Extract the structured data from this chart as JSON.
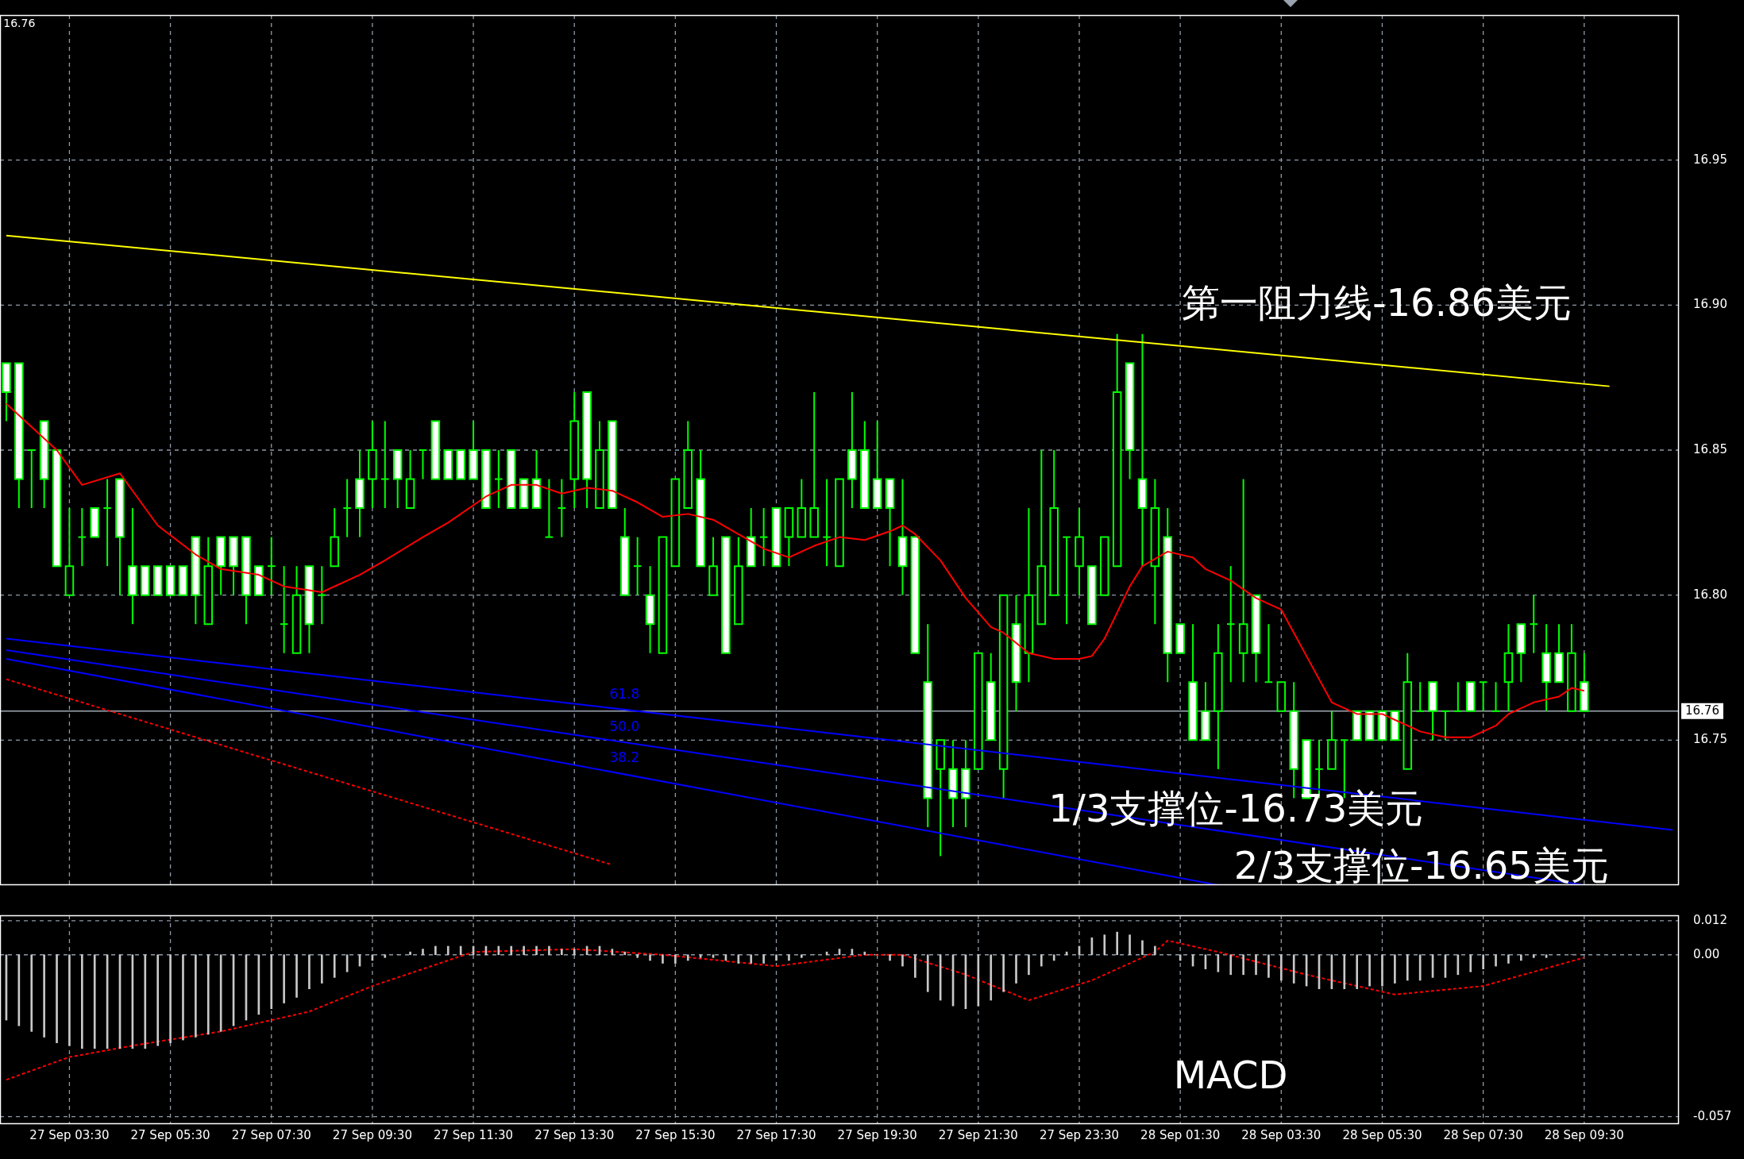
{
  "chart_data": [
    {
      "type": "candlestick",
      "color": "#00ff00",
      "categories": [
        null,
        null,
        null,
        null,
        null,
        null,
        null,
        null,
        null,
        null,
        null,
        null,
        null,
        null,
        null,
        null,
        null,
        null,
        null,
        null,
        null,
        null,
        null,
        null,
        null,
        null,
        null,
        null,
        null,
        null,
        null,
        null,
        null,
        null,
        null,
        null,
        null,
        null,
        null,
        null,
        null,
        null,
        null,
        null,
        null,
        null,
        null,
        null,
        null,
        null,
        null,
        null,
        null,
        null,
        null,
        null,
        null,
        null,
        null,
        null,
        null,
        null,
        null,
        null,
        null,
        null,
        null,
        null,
        null,
        null,
        null,
        null,
        null,
        null,
        null,
        null,
        null,
        null,
        null,
        null,
        null,
        null,
        null,
        null,
        null,
        null,
        null,
        null,
        null,
        null,
        null,
        null,
        null,
        null,
        null,
        null,
        null,
        null,
        null,
        null,
        null,
        null,
        null,
        null,
        null,
        null,
        null,
        null,
        null,
        null,
        null,
        null,
        null,
        null,
        null,
        null,
        null,
        null,
        null,
        null,
        null,
        null,
        null,
        null,
        null,
        null,
        null,
        null,
        null,
        null,
        null,
        null,
        null
      ],
      "ohlc": [
        [
          16.88,
          16.88,
          16.86,
          16.87
        ],
        [
          16.88,
          16.88,
          16.83,
          16.84
        ],
        [
          16.85,
          16.85,
          16.83,
          16.85
        ],
        [
          16.86,
          16.86,
          16.83,
          16.84
        ],
        [
          16.85,
          16.85,
          16.81,
          16.81
        ],
        [
          16.8,
          16.83,
          16.8,
          16.81
        ],
        [
          16.82,
          16.83,
          16.81,
          16.82
        ],
        [
          16.83,
          16.83,
          16.82,
          16.82
        ],
        [
          16.83,
          16.84,
          16.81,
          16.83
        ],
        [
          16.84,
          16.84,
          16.8,
          16.82
        ],
        [
          16.81,
          16.83,
          16.79,
          16.8
        ],
        [
          16.81,
          16.81,
          16.8,
          16.8
        ],
        [
          16.81,
          16.81,
          16.8,
          16.8
        ],
        [
          16.81,
          16.81,
          16.8,
          16.8
        ],
        [
          16.81,
          16.81,
          16.8,
          16.8
        ],
        [
          16.82,
          16.82,
          16.79,
          16.8
        ],
        [
          16.79,
          16.82,
          16.79,
          16.81
        ],
        [
          16.82,
          16.82,
          16.8,
          16.81
        ],
        [
          16.82,
          16.82,
          16.8,
          16.81
        ],
        [
          16.82,
          16.82,
          16.79,
          16.8
        ],
        [
          16.81,
          16.81,
          16.8,
          16.8
        ],
        [
          16.81,
          16.82,
          16.8,
          16.81
        ],
        [
          16.79,
          16.81,
          16.78,
          16.79
        ],
        [
          16.78,
          16.81,
          16.78,
          16.8
        ],
        [
          16.81,
          16.81,
          16.78,
          16.79
        ],
        [
          16.8,
          16.81,
          16.79,
          16.8
        ],
        [
          16.81,
          16.83,
          16.81,
          16.82
        ],
        [
          16.83,
          16.84,
          16.82,
          16.83
        ],
        [
          16.84,
          16.85,
          16.82,
          16.83
        ],
        [
          16.84,
          16.86,
          16.83,
          16.85
        ],
        [
          16.84,
          16.86,
          16.83,
          16.84
        ],
        [
          16.85,
          16.85,
          16.83,
          16.84
        ],
        [
          16.83,
          16.85,
          16.83,
          16.84
        ],
        [
          16.85,
          16.85,
          16.84,
          16.85
        ],
        [
          16.86,
          16.86,
          16.84,
          16.84
        ],
        [
          16.85,
          16.85,
          16.84,
          16.84
        ],
        [
          16.85,
          16.85,
          16.84,
          16.84
        ],
        [
          16.85,
          16.86,
          16.84,
          16.84
        ],
        [
          16.85,
          16.85,
          16.83,
          16.83
        ],
        [
          16.84,
          16.85,
          16.83,
          16.84
        ],
        [
          16.85,
          16.85,
          16.83,
          16.83
        ],
        [
          16.84,
          16.84,
          16.83,
          16.83
        ],
        [
          16.84,
          16.85,
          16.83,
          16.83
        ],
        [
          16.82,
          16.84,
          16.82,
          16.82
        ],
        [
          16.83,
          16.84,
          16.82,
          16.83
        ],
        [
          16.84,
          16.87,
          16.83,
          16.86
        ],
        [
          16.87,
          16.87,
          16.83,
          16.84
        ],
        [
          16.83,
          16.86,
          16.83,
          16.85
        ],
        [
          16.86,
          16.86,
          16.83,
          16.83
        ],
        [
          16.82,
          16.83,
          16.8,
          16.8
        ],
        [
          16.81,
          16.82,
          16.8,
          16.81
        ],
        [
          16.8,
          16.81,
          16.78,
          16.79
        ],
        [
          16.78,
          16.82,
          16.78,
          16.82
        ],
        [
          16.81,
          16.84,
          16.81,
          16.84
        ],
        [
          16.83,
          16.86,
          16.83,
          16.85
        ],
        [
          16.84,
          16.85,
          16.81,
          16.81
        ],
        [
          16.8,
          16.82,
          16.8,
          16.81
        ],
        [
          16.82,
          16.82,
          16.78,
          16.78
        ],
        [
          16.79,
          16.82,
          16.79,
          16.81
        ],
        [
          16.82,
          16.83,
          16.81,
          16.81
        ],
        [
          16.82,
          16.83,
          16.81,
          16.82
        ],
        [
          16.83,
          16.83,
          16.81,
          16.81
        ],
        [
          16.82,
          16.83,
          16.81,
          16.83
        ],
        [
          16.82,
          16.84,
          16.82,
          16.83
        ],
        [
          16.82,
          16.87,
          16.82,
          16.83
        ],
        [
          16.82,
          16.84,
          16.81,
          16.82
        ],
        [
          16.81,
          16.84,
          16.81,
          16.84
        ],
        [
          16.85,
          16.87,
          16.83,
          16.84
        ],
        [
          16.85,
          16.86,
          16.83,
          16.83
        ],
        [
          16.84,
          16.86,
          16.83,
          16.83
        ],
        [
          16.84,
          16.84,
          16.81,
          16.83
        ],
        [
          16.82,
          16.84,
          16.8,
          16.81
        ],
        [
          16.82,
          16.82,
          16.78,
          16.78
        ],
        [
          16.77,
          16.79,
          16.72,
          16.73
        ],
        [
          16.74,
          16.75,
          16.71,
          16.75
        ],
        [
          16.74,
          16.75,
          16.72,
          16.73
        ],
        [
          16.74,
          16.75,
          16.72,
          16.73
        ],
        [
          16.74,
          16.78,
          16.74,
          16.78
        ],
        [
          16.77,
          16.78,
          16.75,
          16.75
        ],
        [
          16.74,
          16.8,
          16.73,
          16.8
        ],
        [
          16.79,
          16.8,
          16.76,
          16.77
        ],
        [
          16.78,
          16.83,
          16.77,
          16.8
        ],
        [
          16.79,
          16.85,
          16.79,
          16.81
        ],
        [
          16.8,
          16.85,
          16.8,
          16.83
        ],
        [
          16.82,
          16.82,
          16.79,
          16.82
        ],
        [
          16.81,
          16.83,
          16.8,
          16.82
        ],
        [
          16.81,
          16.81,
          16.79,
          16.79
        ],
        [
          16.8,
          16.82,
          16.8,
          16.82
        ],
        [
          16.81,
          16.89,
          16.81,
          16.87
        ],
        [
          16.88,
          16.88,
          16.84,
          16.85
        ],
        [
          16.84,
          16.89,
          16.81,
          16.83
        ],
        [
          16.81,
          16.84,
          16.79,
          16.83
        ],
        [
          16.82,
          16.83,
          16.77,
          16.78
        ],
        [
          16.79,
          16.79,
          16.78,
          16.78
        ],
        [
          16.77,
          16.79,
          16.75,
          16.75
        ],
        [
          16.76,
          16.77,
          16.75,
          16.75
        ],
        [
          16.76,
          16.79,
          16.74,
          16.78
        ],
        [
          16.79,
          16.81,
          16.77,
          16.79
        ],
        [
          16.78,
          16.84,
          16.77,
          16.79
        ],
        [
          16.8,
          16.8,
          16.77,
          16.78
        ],
        [
          16.77,
          16.79,
          16.77,
          16.77
        ],
        [
          16.76,
          16.77,
          16.76,
          16.77
        ],
        [
          16.76,
          16.77,
          16.73,
          16.74
        ],
        [
          16.75,
          16.75,
          16.73,
          16.73
        ],
        [
          16.74,
          16.75,
          16.73,
          16.74
        ],
        [
          16.74,
          16.76,
          16.74,
          16.75
        ],
        [
          16.75,
          16.75,
          16.73,
          16.75
        ],
        [
          16.76,
          16.76,
          16.75,
          16.75
        ],
        [
          16.76,
          16.76,
          16.75,
          16.75
        ],
        [
          16.76,
          16.76,
          16.75,
          16.75
        ],
        [
          16.76,
          16.76,
          16.75,
          16.75
        ],
        [
          16.74,
          16.78,
          16.74,
          16.77
        ],
        [
          16.76,
          16.77,
          16.76,
          16.76
        ],
        [
          16.77,
          16.77,
          16.75,
          16.76
        ],
        [
          16.76,
          16.76,
          16.75,
          16.76
        ],
        [
          16.76,
          16.77,
          16.76,
          16.76
        ],
        [
          16.77,
          16.77,
          16.76,
          16.76
        ],
        [
          16.77,
          16.77,
          16.76,
          16.77
        ],
        [
          16.76,
          16.77,
          16.76,
          16.76
        ],
        [
          16.77,
          16.79,
          16.76,
          16.78
        ],
        [
          16.79,
          16.79,
          16.77,
          16.78
        ],
        [
          16.79,
          16.8,
          16.78,
          16.79
        ],
        [
          16.78,
          16.79,
          16.76,
          16.77
        ],
        [
          16.78,
          16.79,
          16.77,
          16.77
        ],
        [
          16.76,
          16.79,
          16.76,
          16.78
        ],
        [
          16.77,
          16.78,
          16.76,
          16.76
        ],
        null,
        null,
        null,
        null,
        null,
        null,
        null
      ],
      "colors": [
        "#ffffff",
        "#ffffff",
        "#00ff00",
        "#ffffff",
        "#ffffff",
        "#000000",
        "#00ff00",
        "#ffffff",
        "#00ff00",
        "#ffffff",
        "#ffffff",
        "#ffffff",
        "#ffffff",
        "#ffffff",
        "#ffffff",
        "#ffffff",
        "#000000",
        "#ffffff",
        "#ffffff",
        "#ffffff",
        "#ffffff",
        "#00ff00",
        "#00ff00",
        "#000000",
        "#ffffff",
        "#00ff00",
        "#000000",
        "#00ff00",
        "#ffffff",
        "#000000",
        "#00ff00",
        "#ffffff",
        "#000000",
        "#00ff00",
        "#ffffff",
        "#ffffff",
        "#ffffff",
        "#ffffff",
        "#ffffff",
        "#00ff00",
        "#ffffff",
        "#ffffff",
        "#ffffff",
        "#00ff00",
        "#00ff00",
        "#000000",
        "#ffffff",
        "#000000",
        "#ffffff",
        "#ffffff",
        "#00ff00",
        "#ffffff",
        "#000000",
        "#000000",
        "#000000",
        "#ffffff",
        "#000000",
        "#ffffff",
        "#000000",
        "#ffffff",
        "#00ff00",
        "#ffffff",
        "#000000",
        "#000000",
        "#000000",
        "#00ff00",
        "#000000",
        "#ffffff",
        "#ffffff",
        "#ffffff",
        "#ffffff",
        "#ffffff",
        "#ffffff",
        "#ffffff",
        "#000000",
        "#ffffff",
        "#ffffff",
        "#000000",
        "#ffffff",
        "#000000",
        "#ffffff",
        "#000000",
        "#000000",
        "#000000",
        "#00ff00",
        "#000000",
        "#ffffff",
        "#000000",
        "#000000",
        "#ffffff",
        "#ffffff",
        "#000000",
        "#ffffff",
        "#ffffff",
        "#ffffff",
        "#ffffff",
        "#000000",
        "#00ff00",
        "#000000",
        "#ffffff",
        "#00ff00",
        "#000000",
        "#ffffff",
        "#ffffff",
        "#00ff00",
        "#000000",
        "#00ff00",
        "#ffffff",
        "#ffffff",
        "#ffffff",
        "#ffffff",
        "#000000",
        "#00ff00",
        "#ffffff",
        "#00ff00",
        "#00ff00",
        "#ffffff",
        "#00ff00",
        "#00ff00",
        "#000000",
        "#ffffff",
        "#00ff00",
        "#ffffff",
        "#ffffff",
        "#000000",
        "#ffffff",
        null,
        null,
        null,
        null,
        null,
        null,
        null
      ],
      "series": [
        {
          "type": "line",
          "color": "#ff0000",
          "values": [
            16.866,
            null,
            null,
            null,
            16.85,
            null,
            16.838,
            null,
            null,
            16.842,
            null,
            null,
            16.824,
            null,
            null,
            16.814,
            null,
            16.809,
            null,
            null,
            16.807,
            null,
            16.803,
            null,
            null,
            16.801,
            null,
            null,
            16.807,
            null,
            16.812,
            null,
            null,
            16.82,
            null,
            16.825,
            null,
            null,
            16.834,
            null,
            16.838,
            null,
            16.838,
            null,
            16.835,
            null,
            16.837,
            null,
            16.836,
            null,
            16.832,
            null,
            16.827,
            null,
            16.828,
            null,
            16.826,
            null,
            16.821,
            null,
            16.816,
            null,
            16.813,
            null,
            16.817,
            null,
            16.82,
            null,
            16.819,
            null,
            16.822,
            16.824,
            16.821,
            null,
            16.812,
            null,
            16.799,
            null,
            16.789,
            16.787,
            null,
            16.78,
            null,
            16.778,
            null,
            16.778,
            16.779,
            16.785,
            16.794,
            16.803,
            16.81,
            null,
            16.815,
            null,
            16.813,
            16.809,
            null,
            16.805,
            null,
            16.799,
            null,
            16.795,
            16.787,
            null,
            16.771,
            16.763,
            null,
            16.759,
            null,
            16.759,
            16.757,
            null,
            16.753,
            null,
            16.751,
            null,
            16.751,
            null,
            16.755,
            16.759,
            null,
            16.763,
            null,
            16.765,
            16.768,
            16.767,
            null,
            null,
            null,
            null,
            null,
            null,
            null
          ]
        },
        {
          "type": "line",
          "color": "#ffff00",
          "values": [
            16.924,
            null,
            null,
            null,
            null,
            null,
            null,
            null,
            null,
            null,
            null,
            null,
            null,
            null,
            null,
            null,
            null,
            null,
            null,
            null,
            null,
            null,
            null,
            null,
            null,
            null,
            null,
            null,
            null,
            null,
            null,
            null,
            null,
            null,
            null,
            null,
            null,
            null,
            null,
            null,
            null,
            null,
            null,
            null,
            null,
            null,
            null,
            null,
            null,
            null,
            null,
            null,
            null,
            null,
            null,
            null,
            null,
            null,
            null,
            null,
            null,
            null,
            null,
            null,
            null,
            null,
            null,
            null,
            null,
            null,
            null,
            null,
            null,
            null,
            null,
            null,
            null,
            null,
            null,
            null,
            null,
            null,
            null,
            null,
            null,
            null,
            null,
            null,
            null,
            null,
            null,
            null,
            null,
            null,
            null,
            null,
            null,
            null,
            null,
            null,
            null,
            null,
            null,
            null,
            null,
            null,
            null,
            null,
            null,
            null,
            null,
            null,
            null,
            null,
            null,
            null,
            null,
            null,
            null,
            null,
            null,
            null,
            null,
            null,
            null,
            null,
            null,
            16.872,
            null,
            null,
            null,
            null,
            null
          ]
        },
        {
          "type": "line",
          "name": "61.8",
          "color": "#0000ff",
          "values": [
            16.785,
            null,
            null,
            null,
            null,
            null,
            null,
            null,
            null,
            null,
            null,
            null,
            null,
            null,
            null,
            null,
            null,
            null,
            null,
            null,
            null,
            null,
            null,
            null,
            null,
            null,
            null,
            null,
            null,
            null,
            null,
            null,
            null,
            null,
            null,
            null,
            null,
            null,
            null,
            null,
            null,
            null,
            null,
            null,
            null,
            null,
            null,
            null,
            null,
            null,
            null,
            null,
            null,
            null,
            null,
            null,
            null,
            null,
            null,
            null,
            null,
            null,
            null,
            null,
            null,
            null,
            null,
            null,
            null,
            null,
            null,
            null,
            null,
            null,
            null,
            null,
            null,
            null,
            null,
            null,
            null,
            null,
            null,
            null,
            null,
            null,
            null,
            null,
            null,
            null,
            null,
            null,
            null,
            null,
            null,
            null,
            null,
            null,
            null,
            null,
            null,
            null,
            null,
            null,
            null,
            null,
            null,
            null,
            null,
            null,
            null,
            null,
            null,
            null,
            null,
            null,
            null,
            null,
            null,
            null,
            null,
            null,
            null,
            null,
            null,
            null,
            null,
            null,
            null,
            null,
            null,
            null,
            16.719
          ]
        },
        {
          "type": "line",
          "name": "50.0",
          "color": "#0000ff",
          "values": [
            16.781,
            null,
            null,
            null,
            null,
            null,
            null,
            null,
            null,
            null,
            null,
            null,
            null,
            null,
            null,
            null,
            null,
            null,
            null,
            null,
            null,
            null,
            null,
            null,
            null,
            null,
            null,
            null,
            null,
            null,
            null,
            null,
            null,
            null,
            null,
            null,
            null,
            null,
            null,
            null,
            null,
            null,
            null,
            null,
            null,
            null,
            null,
            null,
            null,
            null,
            null,
            null,
            null,
            null,
            null,
            null,
            null,
            null,
            null,
            null,
            null,
            null,
            null,
            null,
            null,
            null,
            null,
            null,
            null,
            null,
            null,
            null,
            null,
            null,
            null,
            null,
            null,
            null,
            null,
            null,
            null,
            null,
            null,
            null,
            null,
            null,
            null,
            null,
            null,
            null,
            null,
            null,
            null,
            null,
            null,
            null,
            null,
            null,
            null,
            null,
            null,
            null,
            null,
            null,
            null,
            null,
            null,
            null,
            null,
            null,
            null,
            null,
            null,
            null,
            null,
            null,
            null,
            null,
            null,
            null,
            null,
            null,
            null,
            null,
            null,
            16.7,
            null,
            null,
            null,
            null,
            null,
            null,
            null
          ]
        },
        {
          "type": "line",
          "name": "38.2",
          "color": "#0000ff",
          "values": [
            16.778,
            null,
            null,
            null,
            null,
            null,
            null,
            null,
            null,
            null,
            null,
            null,
            null,
            null,
            null,
            null,
            null,
            null,
            null,
            null,
            null,
            null,
            null,
            null,
            null,
            null,
            null,
            null,
            null,
            null,
            null,
            null,
            null,
            null,
            null,
            null,
            null,
            null,
            null,
            null,
            null,
            null,
            null,
            null,
            null,
            null,
            null,
            null,
            null,
            null,
            null,
            null,
            null,
            null,
            null,
            null,
            null,
            null,
            null,
            null,
            null,
            null,
            null,
            null,
            null,
            null,
            null,
            null,
            null,
            null,
            null,
            null,
            null,
            null,
            null,
            null,
            null,
            null,
            null,
            null,
            null,
            null,
            null,
            null,
            null,
            null,
            null,
            null,
            null,
            null,
            null,
            null,
            null,
            null,
            null,
            null,
            16.7,
            null,
            null,
            null,
            null,
            null,
            null,
            null,
            null,
            null,
            null,
            null,
            null,
            null,
            null,
            null,
            null,
            null,
            null,
            null,
            null,
            null,
            null,
            null,
            null,
            null,
            null,
            null,
            null,
            null,
            null,
            null,
            null,
            null,
            null,
            null,
            null
          ]
        },
        {
          "type": "line",
          "color": "#ff0000",
          "line_style": "dashed",
          "values": [
            16.771,
            null,
            null,
            null,
            null,
            null,
            null,
            null,
            null,
            null,
            null,
            null,
            null,
            null,
            null,
            null,
            null,
            null,
            null,
            null,
            null,
            null,
            null,
            null,
            null,
            null,
            null,
            null,
            null,
            null,
            null,
            null,
            null,
            null,
            null,
            null,
            null,
            null,
            null,
            null,
            null,
            null,
            null,
            null,
            null,
            null,
            null,
            null,
            16.707,
            null,
            null,
            null,
            null,
            null,
            null,
            null,
            null,
            null,
            null,
            null,
            null,
            null,
            null,
            null,
            null,
            null,
            null,
            null,
            null,
            null,
            null,
            null,
            null,
            null,
            null,
            null,
            null,
            null,
            null,
            null,
            null,
            null,
            null,
            null,
            null,
            null,
            null,
            null,
            null,
            null,
            null,
            null,
            null,
            null,
            null,
            null,
            null,
            null,
            null,
            null,
            null,
            null,
            null,
            null,
            null,
            null,
            null,
            null,
            null,
            null,
            null,
            null,
            null,
            null,
            null,
            null,
            null,
            null,
            null,
            null,
            null,
            null,
            null,
            null,
            null,
            null,
            null,
            null,
            null,
            null,
            null,
            null,
            null
          ]
        }
      ],
      "ylim": [
        16.7,
        17.0
      ],
      "yticks": [
        16.75,
        {
          "value": 16.8,
          "label": "16.80"
        },
        16.85,
        {
          "value": 16.9,
          "label": "16.90"
        },
        16.95
      ],
      "tick_labels": "y",
      "grid": true,
      "ref_lines": [
        {
          "axis": "y",
          "value": 16.76,
          "label": "16.76",
          "color": "#a0a8b4"
        }
      ],
      "annotations": [
        "16.76",
        "第一阻力线-16.86美元",
        "1/3支撑位-16.73美元",
        "2/3支撑位-16.65美元"
      ]
    },
    {
      "type": "bar",
      "categories": [
        null,
        null,
        null,
        null,
        null,
        "27 Sep 03:30",
        null,
        null,
        null,
        null,
        null,
        null,
        null,
        "27 Sep 05:30",
        null,
        null,
        null,
        null,
        null,
        null,
        null,
        "27 Sep 07:30",
        null,
        null,
        null,
        null,
        null,
        null,
        null,
        "27 Sep 09:30",
        null,
        null,
        null,
        null,
        null,
        null,
        null,
        "27 Sep 11:30",
        null,
        null,
        null,
        null,
        null,
        null,
        null,
        "27 Sep 13:30",
        null,
        null,
        null,
        null,
        null,
        null,
        null,
        "27 Sep 15:30",
        null,
        null,
        null,
        null,
        null,
        null,
        null,
        "27 Sep 17:30",
        null,
        null,
        null,
        null,
        null,
        null,
        null,
        "27 Sep 19:30",
        null,
        null,
        null,
        null,
        null,
        null,
        null,
        "27 Sep 21:30",
        null,
        null,
        null,
        null,
        null,
        null,
        null,
        "27 Sep 23:30",
        null,
        null,
        null,
        null,
        null,
        null,
        null,
        "28 Sep 01:30",
        null,
        null,
        null,
        null,
        null,
        null,
        null,
        "28 Sep 03:30",
        null,
        null,
        null,
        null,
        null,
        null,
        null,
        "28 Sep 05:30",
        null,
        null,
        null,
        null,
        null,
        null,
        null,
        "28 Sep 07:30",
        null,
        null,
        null,
        null,
        null,
        null,
        null,
        "28 Sep 09:30",
        null,
        null,
        null,
        null,
        null,
        null,
        null
      ],
      "series": [
        {
          "type": "bar",
          "color": "#c8c8c8",
          "values": [
            -0.023,
            -0.025,
            -0.027,
            -0.029,
            -0.031,
            -0.032,
            -0.033,
            -0.033,
            -0.033,
            -0.033,
            -0.033,
            -0.033,
            -0.032,
            -0.031,
            -0.03,
            -0.029,
            -0.028,
            -0.027,
            -0.025,
            -0.023,
            -0.021,
            -0.019,
            -0.017,
            -0.015,
            -0.012,
            -0.01,
            -0.008,
            -0.006,
            -0.004,
            -0.002,
            -0.001,
            0,
            0.001,
            0.002,
            0.003,
            0.003,
            0.003,
            0.003,
            0.003,
            0.003,
            0.003,
            0.003,
            0.003,
            0.003,
            0.002,
            0.002,
            0.003,
            0.003,
            0.002,
            0.001,
            -0.001,
            -0.002,
            -0.003,
            -0.003,
            -0.002,
            -0.001,
            -0.001,
            -0.002,
            -0.003,
            -0.003,
            -0.003,
            -0.002,
            -0.002,
            -0.001,
            0,
            0.001,
            0.002,
            0.002,
            0.001,
            0,
            -0.002,
            -0.004,
            -0.008,
            -0.013,
            -0.016,
            -0.018,
            -0.019,
            -0.018,
            -0.016,
            -0.013,
            -0.01,
            -0.007,
            -0.004,
            -0.002,
            0.001,
            0.003,
            0.006,
            0.007,
            0.008,
            0.007,
            0.005,
            0.003,
            0,
            -0.002,
            -0.004,
            -0.005,
            -0.006,
            -0.007,
            -0.007,
            -0.007,
            -0.008,
            -0.009,
            -0.01,
            -0.011,
            -0.012,
            -0.012,
            -0.012,
            -0.012,
            -0.011,
            -0.011,
            -0.01,
            -0.009,
            -0.009,
            -0.008,
            -0.008,
            -0.007,
            -0.006,
            -0.005,
            -0.004,
            -0.003,
            -0.002,
            -0.001,
            -0.001,
            0,
            0,
            0,
            null,
            null,
            null,
            null,
            null,
            null,
            null
          ]
        },
        {
          "type": "line",
          "color": "#ff0000",
          "line_style": "dashed",
          "values": [
            -0.044,
            null,
            null,
            null,
            null,
            -0.036,
            null,
            null,
            null,
            null,
            -0.032,
            null,
            null,
            null,
            null,
            null,
            null,
            -0.027,
            null,
            null,
            null,
            null,
            null,
            null,
            -0.02,
            null,
            null,
            null,
            null,
            -0.011,
            null,
            null,
            null,
            null,
            null,
            -0.002,
            null,
            0.001,
            null,
            null,
            null,
            null,
            null,
            null,
            null,
            0.002,
            null,
            null,
            null,
            null,
            null,
            null,
            0,
            null,
            null,
            null,
            null,
            null,
            null,
            null,
            null,
            -0.004,
            null,
            null,
            null,
            null,
            null,
            null,
            0,
            null,
            null,
            0,
            null,
            null,
            null,
            null,
            -0.007,
            null,
            null,
            null,
            null,
            -0.016,
            null,
            null,
            null,
            null,
            -0.009,
            null,
            null,
            null,
            null,
            0.001,
            0.005,
            null,
            null,
            null,
            0.001,
            null,
            null,
            null,
            null,
            null,
            null,
            -0.007,
            null,
            null,
            null,
            null,
            null,
            null,
            -0.014,
            null,
            null,
            null,
            null,
            null,
            null,
            -0.011,
            null,
            null,
            null,
            null,
            null,
            null,
            null,
            -0.001,
            null,
            null,
            null,
            null,
            null,
            null,
            null
          ]
        }
      ],
      "ylim": [
        -0.0596,
        0.0139
      ],
      "yticks": [
        -0.057,
        {
          "value": 0,
          "label": "0.00"
        },
        0.012
      ],
      "grid": true,
      "annotations": [
        "MACD"
      ]
    }
  ]
}
